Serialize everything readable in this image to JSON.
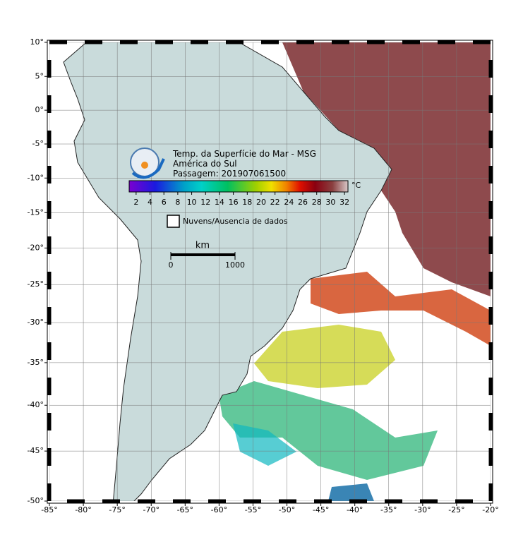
{
  "header": {
    "title": "Temp. da Superfície do Mar - MSG",
    "region": "América do Sul",
    "pass": "Passagem: 201907061500"
  },
  "colorbar": {
    "range": [
      1,
      32.5
    ],
    "ticks": [
      2,
      4,
      6,
      8,
      10,
      12,
      14,
      16,
      18,
      20,
      22,
      24,
      26,
      28,
      30,
      32
    ],
    "unit": "°C"
  },
  "legend": {
    "label": "Nuvens/Ausencia de dados"
  },
  "scale_bar": {
    "unit": "km",
    "ticks": [
      0,
      1000
    ]
  },
  "map": {
    "xlim": [
      -85,
      -20
    ],
    "ylim": [
      -50,
      10
    ],
    "xticks": [
      {
        "value": -85,
        "label": "-85°"
      },
      {
        "value": -80,
        "label": "-80°"
      },
      {
        "value": -75,
        "label": "-75°"
      },
      {
        "value": -70,
        "label": "-70°"
      },
      {
        "value": -65,
        "label": "-65°"
      },
      {
        "value": -60,
        "label": "-60°"
      },
      {
        "value": -55,
        "label": "-55°"
      },
      {
        "value": -50,
        "label": "-50°"
      },
      {
        "value": -45,
        "label": "-45°"
      },
      {
        "value": -40,
        "label": "-40°"
      },
      {
        "value": -35,
        "label": "-35°"
      },
      {
        "value": -30,
        "label": "-30°"
      },
      {
        "value": -25,
        "label": "-25°"
      },
      {
        "value": -20,
        "label": "-20°"
      }
    ],
    "yticks": [
      {
        "value": 10,
        "label": "10°"
      },
      {
        "value": 5,
        "label": "5°"
      },
      {
        "value": 0,
        "label": "0°"
      },
      {
        "value": -5,
        "label": "-5°"
      },
      {
        "value": -10,
        "label": "-10°"
      },
      {
        "value": -15,
        "label": "-15°"
      },
      {
        "value": -20,
        "label": "-20°"
      },
      {
        "value": -25,
        "label": "-25°"
      },
      {
        "value": -30,
        "label": "-30°"
      },
      {
        "value": -35,
        "label": "-35°"
      },
      {
        "value": -40,
        "label": "-40°"
      },
      {
        "value": -45,
        "label": "-45°"
      },
      {
        "value": -50,
        "label": "-50°"
      }
    ]
  }
}
